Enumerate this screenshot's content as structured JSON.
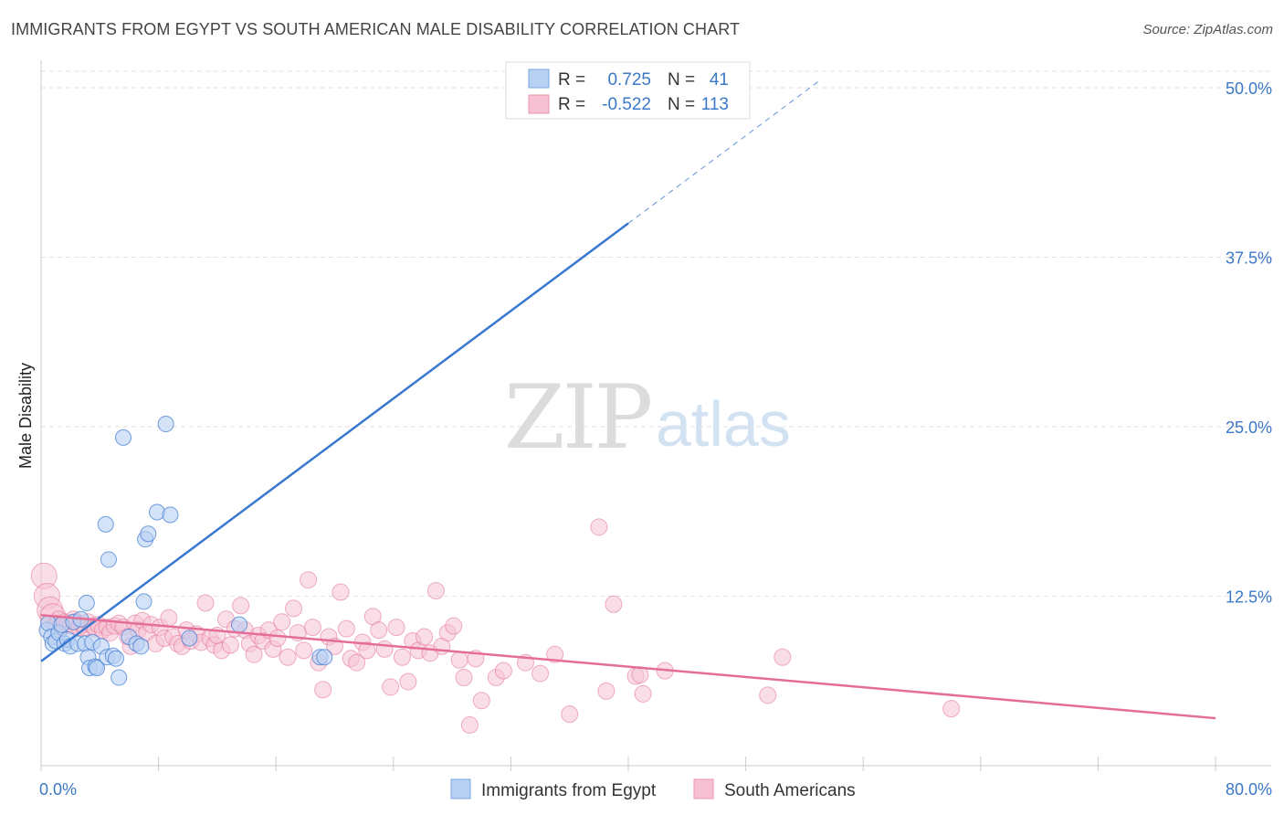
{
  "header": {
    "title": "IMMIGRANTS FROM EGYPT VS SOUTH AMERICAN MALE DISABILITY CORRELATION CHART",
    "source": "Source: ZipAtlas.com"
  },
  "watermark": {
    "zip": "ZIP",
    "atlas": "atlas"
  },
  "colors": {
    "blue": "#3a78d0",
    "blue_fill": "#b7d1f3",
    "pink": "#e46e98",
    "pink_fill": "#f6c2d3",
    "grid": "#e2e2e2",
    "axis_text": "#3b78c8"
  },
  "stats_legend": {
    "rows": [
      {
        "r_label": "R =",
        "r_value": "0.725",
        "n_label": "N =",
        "n_value": "41"
      },
      {
        "r_label": "R =",
        "r_value": "-0.522",
        "n_label": "N =",
        "n_value": "113"
      }
    ]
  },
  "chart_data": {
    "type": "scatter",
    "title": "IMMIGRANTS FROM EGYPT VS SOUTH AMERICAN MALE DISABILITY CORRELATION CHART",
    "xlabel": "",
    "ylabel": "Male Disability",
    "xlim": [
      0,
      80
    ],
    "ylim": [
      0,
      50
    ],
    "x_tick_labels": [
      "0.0%",
      "80.0%"
    ],
    "y_ticks": [
      12.5,
      25.0,
      37.5,
      50.0
    ],
    "y_tick_labels": [
      "12.5%",
      "25.0%",
      "37.5%",
      "50.0%"
    ],
    "grid": true,
    "legend_position": "bottom-center",
    "series": [
      {
        "name": "Immigrants from Egypt",
        "color": "#3a78d0",
        "R": 0.725,
        "N": 41,
        "trend": {
          "x0": 0,
          "y0": 7.7,
          "x1": 40,
          "y1": 40.0,
          "dashed_to_x": 53,
          "dashed_to_y": 50.5
        },
        "points": [
          [
            0.4,
            10.0
          ],
          [
            0.5,
            10.5
          ],
          [
            0.7,
            9.5
          ],
          [
            0.8,
            9.0
          ],
          [
            1.0,
            9.2
          ],
          [
            1.2,
            9.8
          ],
          [
            1.4,
            10.4
          ],
          [
            1.6,
            9.0
          ],
          [
            1.8,
            9.3
          ],
          [
            2.0,
            8.8
          ],
          [
            2.2,
            10.6
          ],
          [
            2.5,
            9.0
          ],
          [
            2.7,
            10.8
          ],
          [
            3.0,
            9.0
          ],
          [
            3.1,
            12.0
          ],
          [
            3.2,
            8.0
          ],
          [
            3.3,
            7.2
          ],
          [
            3.5,
            9.1
          ],
          [
            3.7,
            7.3
          ],
          [
            3.8,
            7.2
          ],
          [
            4.1,
            8.8
          ],
          [
            4.4,
            17.8
          ],
          [
            4.5,
            8.0
          ],
          [
            4.6,
            15.2
          ],
          [
            4.9,
            8.1
          ],
          [
            5.1,
            7.9
          ],
          [
            5.3,
            6.5
          ],
          [
            5.6,
            24.2
          ],
          [
            6.0,
            9.5
          ],
          [
            6.5,
            9.0
          ],
          [
            6.8,
            8.8
          ],
          [
            7.0,
            12.1
          ],
          [
            7.1,
            16.7
          ],
          [
            7.3,
            17.1
          ],
          [
            7.9,
            18.7
          ],
          [
            8.5,
            25.2
          ],
          [
            8.8,
            18.5
          ],
          [
            10.1,
            9.4
          ],
          [
            13.5,
            10.4
          ],
          [
            19.0,
            8.0
          ],
          [
            19.3,
            8.0
          ]
        ]
      },
      {
        "name": "South Americans",
        "color": "#e46e98",
        "R": -0.522,
        "N": 113,
        "trend": {
          "x0": 0,
          "y0": 11.1,
          "x1": 80,
          "y1": 3.5
        },
        "points": [
          [
            0.2,
            14.0
          ],
          [
            0.4,
            12.5
          ],
          [
            0.6,
            11.5
          ],
          [
            0.8,
            11.0
          ],
          [
            1.0,
            10.5
          ],
          [
            1.2,
            10.8
          ],
          [
            1.4,
            10.2
          ],
          [
            1.6,
            10.6
          ],
          [
            1.8,
            10.5
          ],
          [
            2.0,
            10.3
          ],
          [
            2.2,
            10.8
          ],
          [
            2.4,
            10.6
          ],
          [
            2.6,
            10.2
          ],
          [
            2.8,
            10.4
          ],
          [
            3.0,
            10.2
          ],
          [
            3.2,
            10.6
          ],
          [
            3.5,
            10.3
          ],
          [
            3.7,
            10.1
          ],
          [
            3.9,
            10.4
          ],
          [
            4.2,
            10.0
          ],
          [
            4.5,
            10.2
          ],
          [
            4.7,
            9.8
          ],
          [
            5.0,
            10.3
          ],
          [
            5.3,
            10.5
          ],
          [
            5.6,
            10.2
          ],
          [
            5.9,
            9.5
          ],
          [
            6.1,
            8.8
          ],
          [
            6.4,
            10.5
          ],
          [
            6.6,
            10.0
          ],
          [
            6.9,
            10.7
          ],
          [
            7.2,
            9.8
          ],
          [
            7.5,
            10.4
          ],
          [
            7.8,
            9.0
          ],
          [
            8.1,
            10.2
          ],
          [
            8.4,
            9.4
          ],
          [
            8.7,
            10.9
          ],
          [
            9.0,
            9.5
          ],
          [
            9.3,
            9.0
          ],
          [
            9.6,
            8.8
          ],
          [
            9.9,
            10.0
          ],
          [
            10.2,
            9.2
          ],
          [
            10.6,
            9.7
          ],
          [
            10.9,
            9.1
          ],
          [
            11.2,
            12.0
          ],
          [
            11.5,
            9.4
          ],
          [
            11.8,
            8.9
          ],
          [
            12.0,
            9.6
          ],
          [
            12.3,
            8.5
          ],
          [
            12.6,
            10.8
          ],
          [
            12.9,
            8.9
          ],
          [
            13.2,
            10.1
          ],
          [
            13.6,
            11.8
          ],
          [
            13.9,
            10.0
          ],
          [
            14.2,
            9.0
          ],
          [
            14.5,
            8.2
          ],
          [
            14.8,
            9.6
          ],
          [
            15.1,
            9.2
          ],
          [
            15.5,
            10.0
          ],
          [
            15.8,
            8.6
          ],
          [
            16.1,
            9.4
          ],
          [
            16.4,
            10.6
          ],
          [
            16.8,
            8.0
          ],
          [
            17.2,
            11.6
          ],
          [
            17.5,
            9.8
          ],
          [
            17.9,
            8.5
          ],
          [
            18.2,
            13.7
          ],
          [
            18.5,
            10.2
          ],
          [
            18.9,
            7.6
          ],
          [
            19.2,
            5.6
          ],
          [
            19.6,
            9.5
          ],
          [
            20.0,
            8.8
          ],
          [
            20.4,
            12.8
          ],
          [
            20.8,
            10.1
          ],
          [
            21.1,
            7.9
          ],
          [
            21.5,
            7.6
          ],
          [
            21.9,
            9.1
          ],
          [
            22.2,
            8.5
          ],
          [
            22.6,
            11.0
          ],
          [
            23.0,
            10.0
          ],
          [
            23.4,
            8.6
          ],
          [
            23.8,
            5.8
          ],
          [
            24.2,
            10.2
          ],
          [
            24.6,
            8.0
          ],
          [
            25.0,
            6.2
          ],
          [
            25.3,
            9.2
          ],
          [
            25.7,
            8.5
          ],
          [
            26.1,
            9.5
          ],
          [
            26.5,
            8.3
          ],
          [
            26.9,
            12.9
          ],
          [
            27.3,
            8.8
          ],
          [
            27.7,
            9.8
          ],
          [
            28.1,
            10.3
          ],
          [
            28.5,
            7.8
          ],
          [
            28.8,
            6.5
          ],
          [
            29.2,
            3.0
          ],
          [
            29.6,
            7.9
          ],
          [
            30.0,
            4.8
          ],
          [
            31.0,
            6.5
          ],
          [
            31.5,
            7.0
          ],
          [
            33.0,
            7.6
          ],
          [
            34.0,
            6.8
          ],
          [
            35.0,
            8.2
          ],
          [
            36.0,
            3.8
          ],
          [
            38.0,
            17.6
          ],
          [
            38.5,
            5.5
          ],
          [
            39.0,
            11.9
          ],
          [
            40.5,
            6.6
          ],
          [
            41.0,
            5.3
          ],
          [
            42.5,
            7.0
          ],
          [
            49.5,
            5.2
          ],
          [
            50.5,
            8.0
          ],
          [
            62.0,
            4.2
          ],
          [
            40.8,
            6.7
          ]
        ]
      }
    ]
  },
  "bottom_legend": {
    "items": [
      {
        "label": "Immigrants from Egypt"
      },
      {
        "label": "South Americans"
      }
    ]
  }
}
